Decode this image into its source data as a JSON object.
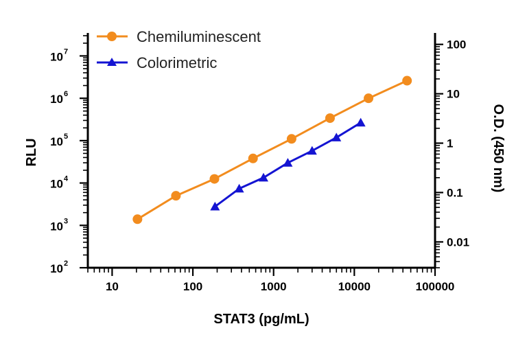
{
  "chart_data": {
    "type": "line",
    "xlabel": "STAT3 (pg/mL)",
    "ylabel_left": "RLU",
    "ylabel_right": "O.D. (450 nm)",
    "x_scale": "log",
    "y_left_scale": "log",
    "y_right_scale": "log",
    "xlim": [
      5,
      100000
    ],
    "ylim_left": [
      100,
      30000000
    ],
    "ylim_right": [
      0.003,
      150
    ],
    "x_ticks": [
      10,
      100,
      1000,
      10000,
      100000
    ],
    "x_tick_labels": [
      "10",
      "100",
      "1000",
      "10000",
      "100000"
    ],
    "y_left_ticks": [
      100,
      1000,
      10000,
      100000,
      1000000,
      10000000
    ],
    "y_left_tick_labels": [
      {
        "base": "10",
        "exp": "2"
      },
      {
        "base": "10",
        "exp": "3"
      },
      {
        "base": "10",
        "exp": "4"
      },
      {
        "base": "10",
        "exp": "5"
      },
      {
        "base": "10",
        "exp": "6"
      },
      {
        "base": "10",
        "exp": "7"
      }
    ],
    "y_right_ticks": [
      0.01,
      0.1,
      1,
      10,
      100
    ],
    "y_right_tick_labels": [
      "0.01",
      "0.1",
      "1",
      "10",
      "100"
    ],
    "grid": false,
    "legend_position": "top-left",
    "series": [
      {
        "name": "Chemiluminescent",
        "axis": "left",
        "color": "#F28C1E",
        "marker": "circle",
        "x": [
          20.6,
          61.7,
          185,
          556,
          1670,
          5000,
          15000,
          45000
        ],
        "y": [
          1400,
          5000,
          12500,
          38000,
          110000,
          340000,
          1000000,
          2600000
        ]
      },
      {
        "name": "Colorimetric",
        "axis": "right",
        "color": "#1414D2",
        "marker": "triangle",
        "x": [
          188,
          375,
          750,
          1500,
          3000,
          6000,
          12000
        ],
        "y": [
          0.052,
          0.12,
          0.2,
          0.4,
          0.7,
          1.3,
          2.6
        ]
      }
    ]
  }
}
